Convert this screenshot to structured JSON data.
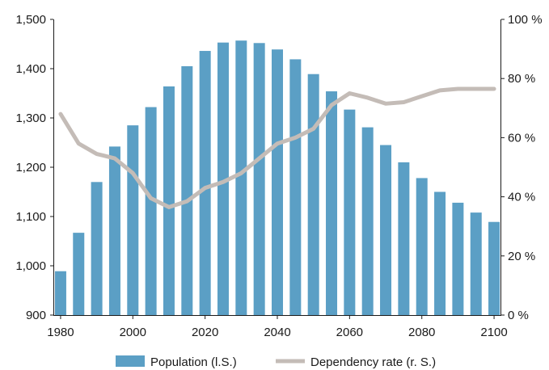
{
  "chart_data": {
    "type": "bar+line",
    "x": [
      1980,
      1985,
      1990,
      1995,
      2000,
      2005,
      2010,
      2015,
      2020,
      2025,
      2030,
      2035,
      2040,
      2045,
      2050,
      2055,
      2060,
      2065,
      2070,
      2075,
      2080,
      2085,
      2090,
      2095,
      2100
    ],
    "x_ticks": [
      "1980",
      "2000",
      "2020",
      "2040",
      "2060",
      "2080",
      "2100"
    ],
    "series": [
      {
        "name": "Population (l.S.)",
        "type": "bar",
        "axis": "left",
        "color": "#5b9fc5",
        "values": [
          989,
          1067,
          1170,
          1242,
          1285,
          1322,
          1364,
          1405,
          1436,
          1453,
          1457,
          1452,
          1439,
          1419,
          1389,
          1354,
          1317,
          1281,
          1245,
          1210,
          1178,
          1150,
          1128,
          1108,
          1089
        ]
      },
      {
        "name": "Dependency rate (r. S.)",
        "type": "line",
        "axis": "right",
        "color": "#c4bcb7",
        "values": [
          68,
          58,
          54.5,
          53,
          48,
          39.5,
          36.5,
          38.5,
          43,
          45,
          48,
          53,
          58,
          60,
          63,
          71,
          75,
          73.5,
          71.5,
          72,
          74,
          76,
          76.5,
          76.5,
          76.5
        ]
      }
    ],
    "left_axis": {
      "min": 900,
      "max": 1500,
      "ticks": [
        "900",
        "1,000",
        "1,100",
        "1,200",
        "1,300",
        "1,400",
        "1,500"
      ]
    },
    "right_axis": {
      "min": 0,
      "max": 100,
      "ticks": [
        "0 %",
        "20 %",
        "40 %",
        "60 %",
        "80 %",
        "100 %"
      ]
    },
    "grid": false,
    "legend_position": "bottom"
  }
}
